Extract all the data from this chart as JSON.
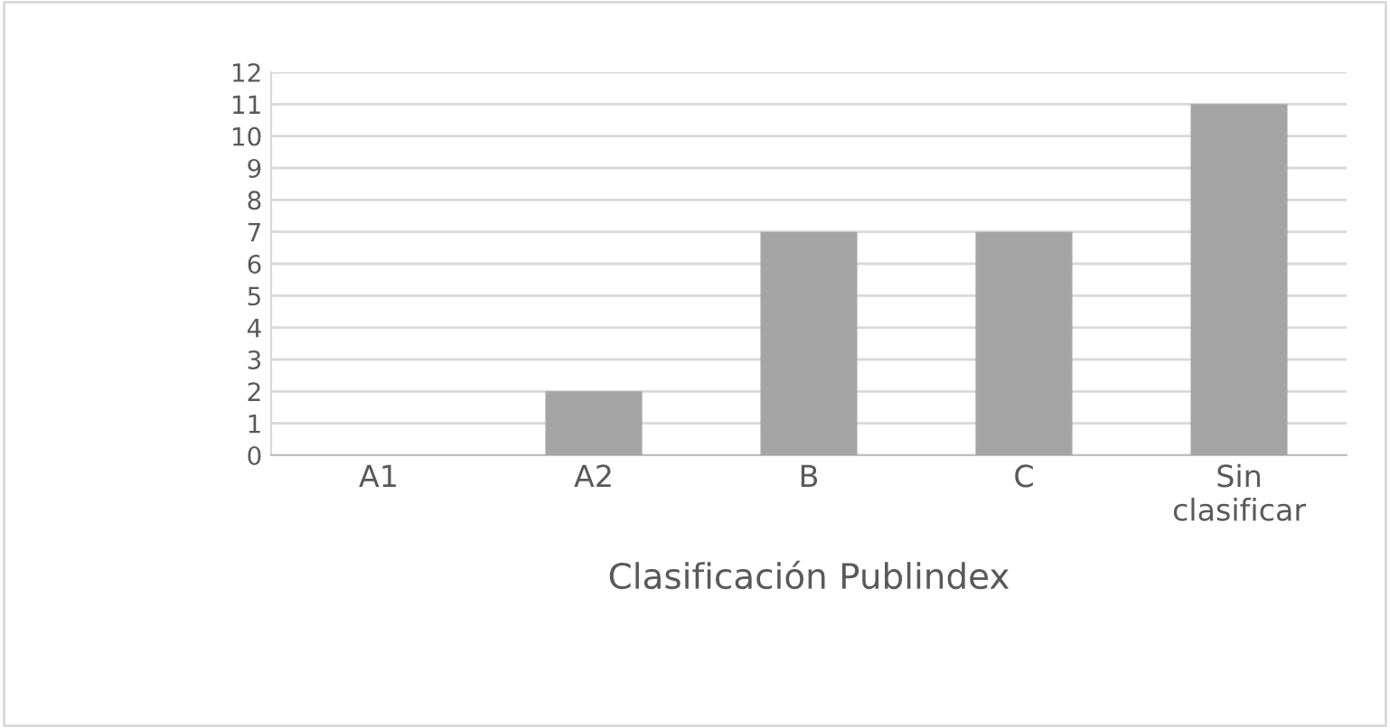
{
  "chart_data": {
    "type": "bar",
    "xlabel": "Clasificación Publindex",
    "categories": [
      "A1",
      "A2",
      "B",
      "C",
      "Sin\nclasificar"
    ],
    "values": [
      0,
      2,
      7,
      7,
      11
    ],
    "color": "#a5a5a5",
    "ylim": [
      0,
      12
    ],
    "yticks": [
      0,
      1,
      2,
      3,
      4,
      5,
      6,
      7,
      8,
      9,
      10,
      11,
      12
    ],
    "grid": "y"
  }
}
